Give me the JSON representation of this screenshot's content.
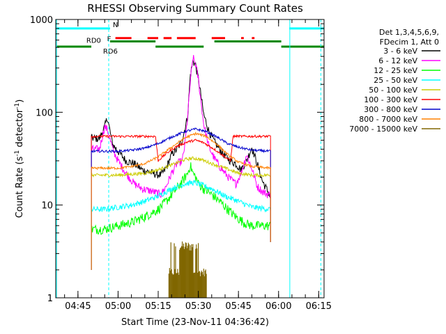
{
  "chart_data": {
    "type": "line",
    "title": "RHESSI Observing Summary Count Rates",
    "xlabel": "Start Time (23-Nov-11 04:36:42)",
    "ylabel_main": "Count Rate (s",
    "ylabel_sup1": "-1",
    "ylabel_mid": " detector",
    "ylabel_sup2": "-1",
    "ylabel_end": ")",
    "x_start_minutes": 276.7,
    "xlim_minutes": [
      276.7,
      377.0
    ],
    "ylim": [
      1,
      1000
    ],
    "y_scale": "log",
    "x_ticks": [
      {
        "label": "04:45",
        "minutes": 285
      },
      {
        "label": "05:00",
        "minutes": 300
      },
      {
        "label": "05:15",
        "minutes": 315
      },
      {
        "label": "05:30",
        "minutes": 330
      },
      {
        "label": "05:45",
        "minutes": 345
      },
      {
        "label": "06:00",
        "minutes": 360
      },
      {
        "label": "06:15",
        "minutes": 375
      }
    ],
    "y_ticks": [
      {
        "label": "1",
        "value": 1
      },
      {
        "label": "10",
        "value": 10
      },
      {
        "label": "100",
        "value": 100
      },
      {
        "label": "1000",
        "value": 1000
      }
    ],
    "legend": {
      "placement": "right",
      "header": [
        "Det 1,3,4,5,6,9,",
        "FDecim 1, Att 0"
      ],
      "entries": [
        {
          "label": "3 - 6 keV",
          "color": "#000000"
        },
        {
          "label": "6 - 12 keV",
          "color": "#ff00ff"
        },
        {
          "label": "12 - 25 keV",
          "color": "#00ff00"
        },
        {
          "label": "25 - 50 keV",
          "color": "#00ffff"
        },
        {
          "label": "50 - 100 keV",
          "color": "#cccc00"
        },
        {
          "label": "100 - 300 keV",
          "color": "#ff0000"
        },
        {
          "label": "300 - 800 keV",
          "color": "#0000cc"
        },
        {
          "label": "800 - 7000 keV",
          "color": "#ff8000"
        },
        {
          "label": "7000 - 15000 keV",
          "color": "#806600"
        }
      ]
    },
    "flags": [
      {
        "label": "N",
        "color": "#00ffff",
        "value": 800,
        "segments": [
          [
            277,
            297
          ],
          [
            364,
            377
          ]
        ]
      },
      {
        "label": "F",
        "color": "#ff0000",
        "value": 630,
        "segments": [
          [
            299,
            305
          ],
          [
            311,
            315
          ],
          [
            317,
            320
          ],
          [
            322,
            329
          ],
          [
            335,
            340
          ],
          [
            346,
            347
          ],
          [
            350,
            351
          ]
        ]
      },
      {
        "label": "RD0",
        "color": "#008800",
        "value": 580,
        "segments": [
          [
            297,
            314
          ],
          [
            336,
            361
          ]
        ]
      },
      {
        "label": "RD6",
        "color": "#008800",
        "value": 510,
        "segments": [
          [
            277,
            290
          ],
          [
            314,
            332
          ],
          [
            361,
            377
          ]
        ]
      }
    ],
    "vlines": [
      {
        "color": "#00ffff",
        "style": "solid",
        "minutes": 277
      },
      {
        "color": "#00ffff",
        "style": "dashed",
        "minutes": 296.5
      },
      {
        "color": "#00ffff",
        "style": "solid",
        "minutes": 364.2
      },
      {
        "color": "#00ffff",
        "style": "dashed",
        "minutes": 375.8
      }
    ],
    "series": [
      {
        "name": "3 - 6 keV",
        "color": "#000000",
        "noise": 0.1,
        "x": [
          290,
          293,
          295,
          296,
          297,
          298,
          300,
          303,
          306,
          309,
          313,
          316,
          318,
          320,
          322,
          324,
          326,
          327,
          328,
          329,
          330,
          331,
          332,
          334,
          336,
          338,
          340,
          342,
          344,
          346,
          348,
          350,
          352,
          354,
          356,
          357
        ],
        "y": [
          53,
          52,
          70,
          88,
          62,
          45,
          38,
          30,
          28,
          24,
          22,
          21,
          25,
          35,
          40,
          50,
          90,
          250,
          360,
          320,
          230,
          150,
          95,
          62,
          48,
          40,
          34,
          30,
          28,
          24,
          30,
          42,
          28,
          18,
          14,
          12
        ]
      },
      {
        "name": "6 - 12 keV",
        "color": "#ff00ff",
        "noise": 0.1,
        "x": [
          290,
          293,
          295,
          296,
          298,
          300,
          303,
          306,
          309,
          313,
          316,
          318,
          320,
          322,
          324,
          325,
          326,
          327,
          328,
          329,
          330,
          331,
          332,
          334,
          336,
          338,
          340,
          342,
          344,
          346,
          348,
          350,
          352,
          354,
          356,
          357
        ],
        "y": [
          40,
          40,
          70,
          65,
          40,
          30,
          22,
          17,
          15,
          14,
          13,
          16,
          22,
          28,
          30,
          45,
          90,
          210,
          390,
          330,
          230,
          130,
          75,
          42,
          32,
          26,
          22,
          19,
          17,
          22,
          35,
          25,
          16,
          14,
          13,
          13
        ]
      },
      {
        "name": "12 - 25 keV",
        "color": "#00ff00",
        "noise": 0.12,
        "x": [
          290,
          295,
          300,
          305,
          310,
          315,
          318,
          321,
          324,
          326,
          327,
          328,
          329,
          330,
          332,
          335,
          338,
          341,
          344,
          347,
          350,
          353,
          357
        ],
        "y": [
          5.5,
          5.5,
          6,
          6.5,
          7.5,
          9,
          11,
          14,
          18,
          22,
          27,
          22,
          20,
          17,
          15,
          13,
          11,
          9,
          7.5,
          6.5,
          6,
          6,
          6
        ]
      },
      {
        "name": "25 - 50 keV",
        "color": "#00ffff",
        "noise": 0.07,
        "x": [
          290,
          295,
          300,
          305,
          310,
          315,
          320,
          325,
          328,
          330,
          335,
          340,
          345,
          350,
          357
        ],
        "y": [
          9,
          9,
          9.5,
          10,
          11,
          12.5,
          15,
          17,
          17.5,
          17,
          15,
          12.5,
          11,
          9.5,
          9
        ]
      },
      {
        "name": "50 - 100 keV",
        "color": "#cccc00",
        "noise": 0.04,
        "x": [
          290,
          300,
          305,
          310,
          315,
          320,
          325,
          328,
          331,
          335,
          340,
          345,
          350,
          357
        ],
        "y": [
          21,
          21,
          21.5,
          22,
          24,
          27,
          31,
          32,
          31,
          28,
          25,
          22,
          21,
          21
        ]
      },
      {
        "name": "100 - 300 keV",
        "color": "#ff0000",
        "noise": 0.03,
        "x": [
          290,
          310,
          313,
          314,
          315,
          318,
          322,
          326,
          329,
          332,
          336,
          340,
          342,
          343,
          344,
          357
        ],
        "y": [
          55,
          55,
          55,
          55,
          30,
          36,
          43,
          48,
          50,
          47,
          40,
          33,
          30,
          55,
          55,
          55
        ]
      },
      {
        "name": "300 - 800 keV",
        "color": "#0000cc",
        "noise": 0.03,
        "x": [
          290,
          300,
          305,
          310,
          315,
          320,
          325,
          329,
          333,
          337,
          341,
          345,
          350,
          357
        ],
        "y": [
          38,
          38,
          39,
          41,
          46,
          54,
          62,
          66,
          62,
          54,
          46,
          42,
          39,
          38
        ]
      },
      {
        "name": "800 - 7000 keV",
        "color": "#ff8000",
        "noise": 0.03,
        "x": [
          290,
          300,
          305,
          310,
          315,
          320,
          325,
          329,
          333,
          337,
          341,
          345,
          350,
          357
        ],
        "y": [
          25,
          25,
          26,
          28,
          33,
          42,
          53,
          59,
          55,
          45,
          35,
          29,
          26,
          25
        ]
      }
    ],
    "bars_7000_15000": {
      "name": "7000 - 15000 keV",
      "color": "#806600",
      "x_range": [
        319,
        333
      ],
      "high_range": [
        323,
        328
      ],
      "high_value": 3.7,
      "low_value": 2.0
    }
  }
}
